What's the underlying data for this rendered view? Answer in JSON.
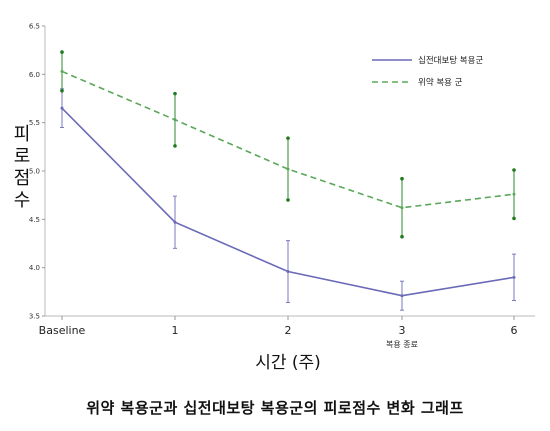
{
  "caption": "위약 복용군과 십전대보탕 복용군의 피로점수 변화 그래프",
  "chart_data": {
    "type": "line",
    "title": "",
    "xlabel": "시간 (주)",
    "ylabel": "피로점수",
    "ylim": [
      3.5,
      6.5
    ],
    "yticks": [
      "3.5",
      "4.0",
      "4.5",
      "5.0",
      "5.5",
      "6.0",
      "6.5"
    ],
    "categories": [
      "Baseline",
      "1",
      "2",
      "3",
      "6"
    ],
    "annotations": [
      {
        "category": "3",
        "text": "복용 종료"
      }
    ],
    "legend_position": "top-right",
    "grid": false,
    "series": [
      {
        "name": "십전대보탕 복용군",
        "style": "solid",
        "color": "#6a6ab8",
        "values": [
          5.65,
          4.47,
          3.96,
          3.71,
          3.9
        ],
        "error_low": [
          5.45,
          4.2,
          3.64,
          3.56,
          3.66
        ],
        "error_high": [
          5.85,
          4.74,
          4.28,
          3.86,
          4.14
        ]
      },
      {
        "name": "위약 복용 군",
        "style": "dashed",
        "color": "#5aa85a",
        "values": [
          6.03,
          5.53,
          5.02,
          4.62,
          4.76
        ],
        "error_low": [
          5.83,
          5.26,
          4.7,
          4.32,
          4.51
        ],
        "error_high": [
          6.23,
          5.8,
          5.34,
          4.92,
          5.01
        ]
      }
    ]
  }
}
